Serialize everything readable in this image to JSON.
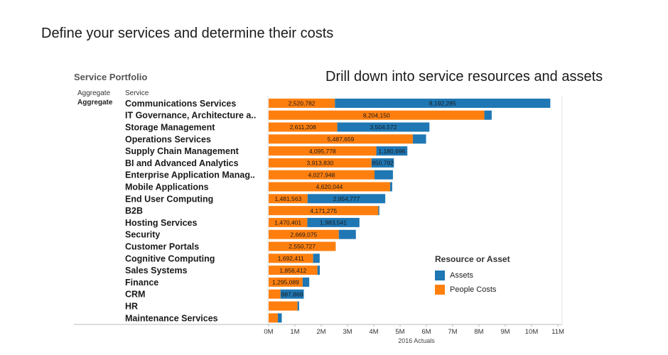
{
  "headline": "Define your services and determine their costs",
  "subhead": "Drill down into service resources and assets",
  "chart_data": {
    "type": "bar",
    "orientation": "horizontal",
    "stacked": true,
    "title": "Service Portfolio",
    "column_headers": [
      "Aggregate",
      "Service"
    ],
    "row_dimension_value": "Aggregate",
    "xlabel": "2016 Actuals",
    "xlim": [
      0,
      11000000
    ],
    "x_tick_values": [
      0,
      1000000,
      2000000,
      3000000,
      4000000,
      5000000,
      6000000,
      7000000,
      8000000,
      9000000,
      10000000,
      11000000
    ],
    "x_tick_labels": [
      "0M",
      "1M",
      "2M",
      "3M",
      "4M",
      "5M",
      "6M",
      "7M",
      "8M",
      "9M",
      "10M",
      "11M"
    ],
    "categories": [
      "Communications Services",
      "IT Governance, Architecture a..",
      "Storage Management",
      "Operations Services",
      "Supply Chain Management",
      "BI and Advanced Analytics",
      "Enterprise Application Manag..",
      "Mobile Applications",
      "End User Computing",
      "B2B",
      "Hosting Services",
      "Security",
      "Customer Portals",
      "Cognitive Computing",
      "Sales Systems",
      "Finance",
      "CRM",
      "HR",
      "Maintenance Services"
    ],
    "series": [
      {
        "name": "People Costs",
        "color": "#ff7f0e",
        "values": [
          2520782,
          8204150,
          2611208,
          5487659,
          4095778,
          3913830,
          4027948,
          4620044,
          1481563,
          4171275,
          1470401,
          2669075,
          2550727,
          1692411,
          1856412,
          1295089,
          450000,
          1100000,
          350000
        ],
        "labels": [
          "2,520,782",
          "8,204,150",
          "2,611,208",
          "5,487,659",
          "4,095,778",
          "3,913,830",
          "4,027,948",
          "4,620,044",
          "1,481,563",
          "4,171,275",
          "1,470,401",
          "2,669,075",
          "2,550,727",
          "1,692,411",
          "1,856,412",
          "1,295,089",
          "",
          "",
          ""
        ]
      },
      {
        "name": "Assets",
        "color": "#1f77b4",
        "values": [
          8192285,
          280000,
          3504572,
          500000,
          1180696,
          850792,
          700000,
          80000,
          2954777,
          40000,
          1983541,
          650000,
          0,
          250000,
          90000,
          250000,
          887869,
          60000,
          150000
        ],
        "labels": [
          "8,192,285",
          "",
          "3,504,572",
          "",
          "1,180,696",
          "850,792",
          "",
          "",
          "2,954,777",
          "",
          "1,983,541",
          "",
          "",
          "",
          "",
          "",
          "887,869",
          "",
          ""
        ]
      }
    ],
    "legend": {
      "title": "Resource or Asset",
      "position": "bottom-right",
      "order": [
        "Assets",
        "People Costs"
      ]
    }
  }
}
